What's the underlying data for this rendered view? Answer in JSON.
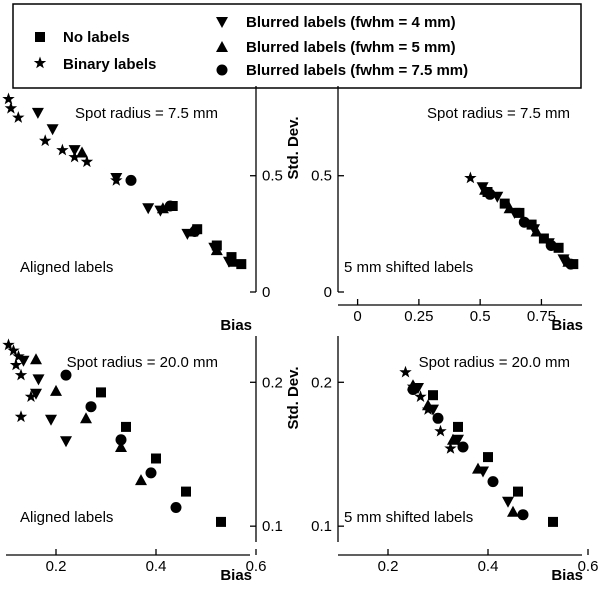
{
  "legend": {
    "entries": [
      {
        "marker": "square",
        "label": "No labels"
      },
      {
        "marker": "star",
        "label": "Binary labels"
      },
      {
        "marker": "triangle-down",
        "label": "Blurred labels (fwhm = 4 mm)"
      },
      {
        "marker": "triangle-up",
        "label": "Blurred labels (fwhm = 5 mm)"
      },
      {
        "marker": "circle",
        "label": "Blurred labels (fwhm = 7.5 mm)"
      }
    ]
  },
  "chart_data": [
    {
      "type": "scatter",
      "title": "Spot radius = 7.5 mm",
      "annotation": "Aligned labels",
      "xlabel": "Bias",
      "ylabel": "",
      "xlim": [
        -0.08,
        0.94
      ],
      "ylim": [
        0,
        0.86
      ],
      "xticks": [
        "0",
        "0.25",
        "0.5",
        "0.75",
        "1"
      ],
      "xtick_values": [
        0,
        0.25,
        0.5,
        0.75,
        1.0
      ],
      "yticks": [
        "0",
        "0.5"
      ],
      "ytick_values": [
        0,
        0.5
      ],
      "yaxis_side": "right",
      "show_xaxis": false,
      "series": [
        {
          "name": "No labels",
          "marker": "square",
          "x": [
            0.6,
            0.7,
            0.78,
            0.84,
            0.88
          ],
          "y": [
            0.37,
            0.27,
            0.2,
            0.15,
            0.12
          ]
        },
        {
          "name": "Binary labels",
          "marker": "star",
          "x": [
            -0.07,
            -0.06,
            -0.03,
            0.08,
            0.15,
            0.2,
            0.25,
            0.37
          ],
          "y": [
            0.83,
            0.79,
            0.75,
            0.65,
            0.61,
            0.58,
            0.56,
            0.48
          ]
        },
        {
          "name": "Blurred labels (fwhm = 4 mm)",
          "marker": "triangle-down",
          "x": [
            0.05,
            0.11,
            0.2,
            0.37,
            0.5,
            0.55,
            0.66,
            0.77,
            0.83
          ],
          "y": [
            0.77,
            0.7,
            0.61,
            0.49,
            0.36,
            0.35,
            0.25,
            0.19,
            0.13
          ]
        },
        {
          "name": "Blurred labels (fwhm = 5 mm)",
          "marker": "triangle-up",
          "x": [
            0.23,
            0.56,
            0.68,
            0.78,
            0.85
          ],
          "y": [
            0.6,
            0.36,
            0.26,
            0.18,
            0.13
          ]
        },
        {
          "name": "Blurred labels (fwhm = 7.5 mm)",
          "marker": "circle",
          "x": [
            0.43,
            0.59,
            0.69
          ],
          "y": [
            0.48,
            0.37,
            0.26
          ]
        }
      ]
    },
    {
      "type": "scatter",
      "title": "Spot radius = 7.5 mm",
      "annotation": "5 mm shifted labels",
      "xlabel": "Bias",
      "ylabel": "Std. Dev.",
      "xlim": [
        -0.08,
        0.94
      ],
      "ylim": [
        0,
        0.86
      ],
      "xticks": [
        "0",
        "0.25",
        "0.5",
        "0.75",
        "1"
      ],
      "xtick_values": [
        0,
        0.25,
        0.5,
        0.75,
        1.0
      ],
      "yticks": [
        "0",
        "0.5"
      ],
      "ytick_values": [
        0,
        0.5
      ],
      "yaxis_side": "left",
      "show_xaxis": true,
      "series": [
        {
          "name": "No labels",
          "marker": "square",
          "x": [
            0.53,
            0.6,
            0.66,
            0.71,
            0.76,
            0.82,
            0.88
          ],
          "y": [
            0.43,
            0.38,
            0.34,
            0.29,
            0.23,
            0.19,
            0.12
          ]
        },
        {
          "name": "Binary labels",
          "marker": "star",
          "x": [
            0.46
          ],
          "y": [
            0.49
          ]
        },
        {
          "name": "Blurred labels (fwhm = 4 mm)",
          "marker": "triangle-down",
          "x": [
            0.51,
            0.57,
            0.64,
            0.72,
            0.78,
            0.84
          ],
          "y": [
            0.45,
            0.41,
            0.34,
            0.27,
            0.21,
            0.14
          ]
        },
        {
          "name": "Blurred labels (fwhm = 5 mm)",
          "marker": "triangle-up",
          "x": [
            0.52,
            0.62,
            0.73,
            0.86
          ],
          "y": [
            0.44,
            0.36,
            0.26,
            0.13
          ]
        },
        {
          "name": "Blurred labels (fwhm = 7.5 mm)",
          "marker": "circle",
          "x": [
            0.54,
            0.68,
            0.79,
            0.87
          ],
          "y": [
            0.42,
            0.3,
            0.2,
            0.12
          ]
        }
      ]
    },
    {
      "type": "scatter",
      "title": "Spot radius = 20.0 mm",
      "annotation": "Aligned labels",
      "xlabel": "Bias",
      "ylabel": "",
      "xlim": [
        0.1,
        0.6
      ],
      "ylim": [
        0.089,
        0.228
      ],
      "xticks": [
        "0.2",
        "0.4",
        "0.6"
      ],
      "xtick_values": [
        0.2,
        0.4,
        0.6
      ],
      "yticks": [
        "0.1",
        "0.2"
      ],
      "ytick_values": [
        0.1,
        0.2
      ],
      "yaxis_side": "right",
      "show_xaxis": true,
      "series": [
        {
          "name": "No labels",
          "marker": "square",
          "x": [
            0.29,
            0.34,
            0.4,
            0.46,
            0.53
          ],
          "y": [
            0.193,
            0.169,
            0.147,
            0.124,
            0.103
          ]
        },
        {
          "name": "Binary labels",
          "marker": "star",
          "x": [
            0.105,
            0.115,
            0.125,
            0.12,
            0.13,
            0.15,
            0.13
          ],
          "y": [
            0.226,
            0.222,
            0.218,
            0.212,
            0.205,
            0.19,
            0.176
          ]
        },
        {
          "name": "Blurred labels (fwhm = 4 mm)",
          "marker": "triangle-down",
          "x": [
            0.135,
            0.165,
            0.16,
            0.19,
            0.22
          ],
          "y": [
            0.215,
            0.202,
            0.192,
            0.174,
            0.159
          ]
        },
        {
          "name": "Blurred labels (fwhm = 5 mm)",
          "marker": "triangle-up",
          "x": [
            0.16,
            0.2,
            0.26,
            0.33,
            0.37
          ],
          "y": [
            0.216,
            0.194,
            0.175,
            0.155,
            0.132
          ]
        },
        {
          "name": "Blurred labels (fwhm = 7.5 mm)",
          "marker": "circle",
          "x": [
            0.22,
            0.27,
            0.33,
            0.39,
            0.44
          ],
          "y": [
            0.205,
            0.183,
            0.16,
            0.137,
            0.113
          ]
        }
      ]
    },
    {
      "type": "scatter",
      "title": "Spot radius = 20.0 mm",
      "annotation": "5 mm shifted labels",
      "xlabel": "Bias",
      "ylabel": "Std. Dev.",
      "xlim": [
        0.1,
        0.6
      ],
      "ylim": [
        0.089,
        0.228
      ],
      "xticks": [
        "0.2",
        "0.4",
        "0.6"
      ],
      "xtick_values": [
        0.2,
        0.4,
        0.6
      ],
      "yticks": [
        "0.1",
        "0.2"
      ],
      "ytick_values": [
        0.1,
        0.2
      ],
      "yaxis_side": "left",
      "show_xaxis": true,
      "series": [
        {
          "name": "No labels",
          "marker": "square",
          "x": [
            0.29,
            0.34,
            0.4,
            0.46,
            0.53
          ],
          "y": [
            0.191,
            0.169,
            0.148,
            0.124,
            0.103
          ]
        },
        {
          "name": "Binary labels",
          "marker": "star",
          "x": [
            0.235,
            0.25,
            0.265,
            0.28,
            0.305,
            0.325
          ],
          "y": [
            0.207,
            0.197,
            0.19,
            0.181,
            0.166,
            0.154
          ]
        },
        {
          "name": "Blurred labels (fwhm = 4 mm)",
          "marker": "triangle-down",
          "x": [
            0.26,
            0.29,
            0.34,
            0.39,
            0.44
          ],
          "y": [
            0.196,
            0.181,
            0.16,
            0.138,
            0.117
          ]
        },
        {
          "name": "Blurred labels (fwhm = 5 mm)",
          "marker": "triangle-up",
          "x": [
            0.25,
            0.28,
            0.33,
            0.38,
            0.45
          ],
          "y": [
            0.198,
            0.184,
            0.16,
            0.14,
            0.11
          ]
        },
        {
          "name": "Blurred labels (fwhm = 7.5 mm)",
          "marker": "circle",
          "x": [
            0.25,
            0.3,
            0.35,
            0.41,
            0.47
          ],
          "y": [
            0.195,
            0.175,
            0.155,
            0.131,
            0.108
          ]
        }
      ]
    }
  ]
}
